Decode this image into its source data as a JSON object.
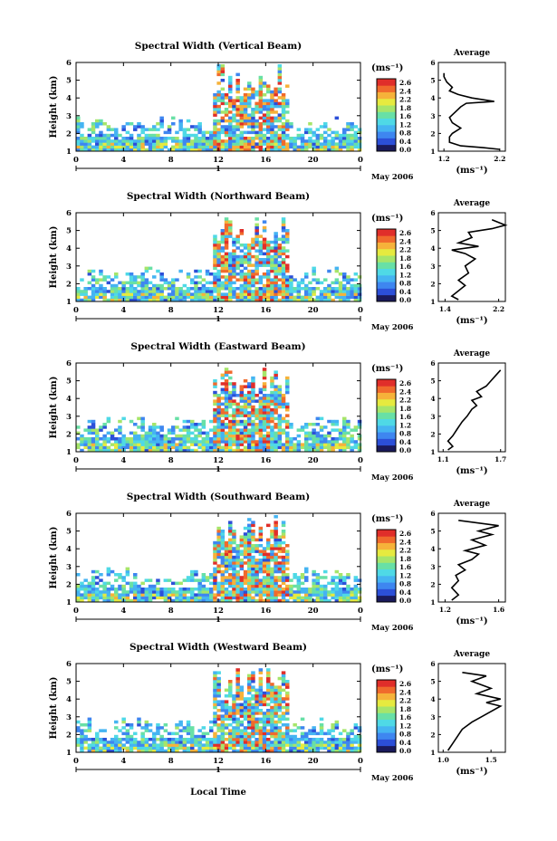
{
  "figure": {
    "xlabel": "Local Time",
    "date_label": "May 2006",
    "day_label": "1",
    "colorbar_unit": "(ms⁻¹)",
    "colorbar_ticks": [
      "2.6",
      "2.4",
      "2.2",
      "1.8",
      "1.6",
      "1.2",
      "0.8",
      "0.4",
      "0.0"
    ],
    "avg_title": "Average",
    "avg_xlabel": "(ms⁻¹)",
    "ylabel": "Height (km)"
  },
  "colors": {
    "ramp": [
      "#1a1a5c",
      "#2c4fd8",
      "#3e86f0",
      "#45b4f2",
      "#4fd9e6",
      "#68e0a6",
      "#a6e56a",
      "#e6ea3f",
      "#f6b23a",
      "#f06a2c",
      "#e02e2a"
    ]
  },
  "chart_data": [
    {
      "type": "heatmap",
      "title": "Spectral Width (Vertical Beam)",
      "x_ticks": [
        "0",
        "4",
        "8",
        "12",
        "16",
        "20",
        "0"
      ],
      "y_ticks": [
        "1",
        "2",
        "3",
        "4",
        "5",
        "6"
      ],
      "xlim": [
        0,
        24
      ],
      "ylim": [
        1,
        6
      ],
      "avg": {
        "x_ticks": [
          "1.2",
          "2.2"
        ],
        "xlim": [
          1.1,
          2.3
        ],
        "profile": [
          [
            2.2,
            1.1
          ],
          [
            1.9,
            1.2
          ],
          [
            1.5,
            1.3
          ],
          [
            1.3,
            1.5
          ],
          [
            1.3,
            1.8
          ],
          [
            1.35,
            2.0
          ],
          [
            1.5,
            2.3
          ],
          [
            1.35,
            2.6
          ],
          [
            1.3,
            2.9
          ],
          [
            1.4,
            3.2
          ],
          [
            1.5,
            3.5
          ],
          [
            1.6,
            3.7
          ],
          [
            2.1,
            3.8
          ],
          [
            1.7,
            4.0
          ],
          [
            1.45,
            4.2
          ],
          [
            1.3,
            4.4
          ],
          [
            1.35,
            4.6
          ],
          [
            1.25,
            4.9
          ],
          [
            1.2,
            5.2
          ],
          [
            1.2,
            5.4
          ]
        ]
      }
    },
    {
      "type": "heatmap",
      "title": "Spectral Width (Northward Beam)",
      "x_ticks": [
        "0",
        "4",
        "8",
        "12",
        "16",
        "20",
        "0"
      ],
      "y_ticks": [
        "1",
        "2",
        "3",
        "4",
        "5",
        "6"
      ],
      "xlim": [
        0,
        24
      ],
      "ylim": [
        1,
        6
      ],
      "avg": {
        "x_ticks": [
          "1.4",
          "2.2"
        ],
        "xlim": [
          1.3,
          2.3
        ],
        "profile": [
          [
            1.6,
            1.1
          ],
          [
            1.5,
            1.3
          ],
          [
            1.6,
            1.6
          ],
          [
            1.7,
            1.9
          ],
          [
            1.6,
            2.2
          ],
          [
            1.75,
            2.6
          ],
          [
            1.7,
            3.0
          ],
          [
            1.85,
            3.4
          ],
          [
            1.7,
            3.7
          ],
          [
            1.5,
            3.9
          ],
          [
            1.9,
            4.1
          ],
          [
            1.6,
            4.3
          ],
          [
            1.8,
            4.6
          ],
          [
            1.75,
            4.9
          ],
          [
            2.1,
            5.1
          ],
          [
            2.3,
            5.3
          ],
          [
            2.1,
            5.6
          ]
        ]
      }
    },
    {
      "type": "heatmap",
      "title": "Spectral Width (Eastward Beam)",
      "x_ticks": [
        "0",
        "4",
        "8",
        "12",
        "16",
        "20",
        "0"
      ],
      "y_ticks": [
        "1",
        "2",
        "3",
        "4",
        "5",
        "6"
      ],
      "xlim": [
        0,
        24
      ],
      "ylim": [
        1,
        6
      ],
      "avg": {
        "x_ticks": [
          "1.1",
          "1.7"
        ],
        "xlim": [
          1.05,
          1.75
        ],
        "profile": [
          [
            1.15,
            1.1
          ],
          [
            1.2,
            1.3
          ],
          [
            1.15,
            1.6
          ],
          [
            1.2,
            1.9
          ],
          [
            1.25,
            2.3
          ],
          [
            1.3,
            2.7
          ],
          [
            1.35,
            3.0
          ],
          [
            1.4,
            3.4
          ],
          [
            1.45,
            3.6
          ],
          [
            1.4,
            3.9
          ],
          [
            1.5,
            4.1
          ],
          [
            1.45,
            4.4
          ],
          [
            1.55,
            4.7
          ],
          [
            1.6,
            5.0
          ],
          [
            1.65,
            5.3
          ],
          [
            1.7,
            5.6
          ]
        ]
      }
    },
    {
      "type": "heatmap",
      "title": "Spectral Width (Southward Beam)",
      "x_ticks": [
        "0",
        "4",
        "8",
        "12",
        "16",
        "20",
        "0"
      ],
      "y_ticks": [
        "1",
        "2",
        "3",
        "4",
        "5",
        "6"
      ],
      "xlim": [
        0,
        24
      ],
      "ylim": [
        1,
        6
      ],
      "avg": {
        "x_ticks": [
          "1.2",
          "1.6"
        ],
        "xlim": [
          1.15,
          1.65
        ],
        "profile": [
          [
            1.25,
            1.1
          ],
          [
            1.3,
            1.4
          ],
          [
            1.25,
            1.8
          ],
          [
            1.3,
            2.2
          ],
          [
            1.28,
            2.5
          ],
          [
            1.35,
            2.8
          ],
          [
            1.3,
            3.1
          ],
          [
            1.4,
            3.4
          ],
          [
            1.45,
            3.7
          ],
          [
            1.35,
            3.9
          ],
          [
            1.5,
            4.2
          ],
          [
            1.4,
            4.5
          ],
          [
            1.55,
            4.8
          ],
          [
            1.45,
            5.0
          ],
          [
            1.6,
            5.3
          ],
          [
            1.3,
            5.6
          ]
        ]
      }
    },
    {
      "type": "heatmap",
      "title": "Spectral Width (Westward Beam)",
      "x_ticks": [
        "0",
        "4",
        "8",
        "12",
        "16",
        "20",
        "0"
      ],
      "y_ticks": [
        "1",
        "2",
        "3",
        "4",
        "5",
        "6"
      ],
      "xlim": [
        0,
        24
      ],
      "ylim": [
        1,
        6
      ],
      "avg": {
        "x_ticks": [
          "1.0",
          "1.5"
        ],
        "xlim": [
          0.95,
          1.65
        ],
        "profile": [
          [
            1.05,
            1.1
          ],
          [
            1.1,
            1.5
          ],
          [
            1.15,
            1.9
          ],
          [
            1.2,
            2.3
          ],
          [
            1.3,
            2.7
          ],
          [
            1.4,
            3.0
          ],
          [
            1.5,
            3.3
          ],
          [
            1.6,
            3.6
          ],
          [
            1.45,
            3.8
          ],
          [
            1.6,
            4.0
          ],
          [
            1.35,
            4.3
          ],
          [
            1.5,
            4.6
          ],
          [
            1.3,
            5.0
          ],
          [
            1.45,
            5.3
          ],
          [
            1.2,
            5.5
          ]
        ]
      }
    }
  ]
}
